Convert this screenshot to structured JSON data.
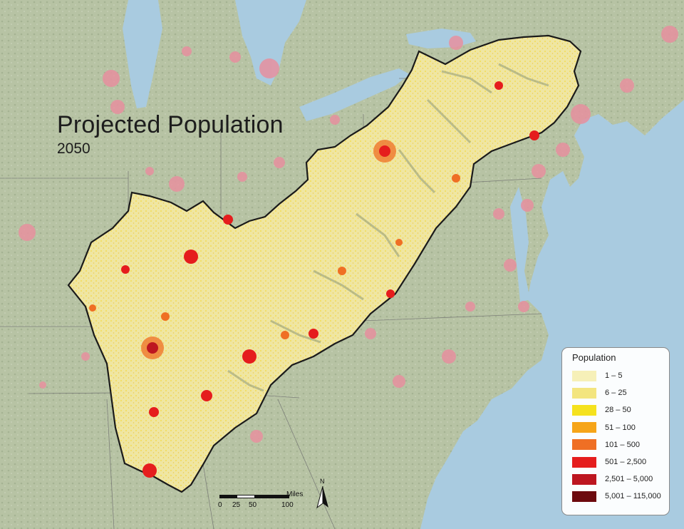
{
  "map": {
    "title": "Projected Population",
    "subtitle": "2050",
    "colors": {
      "ocean": "#a9cbe0",
      "land": "#b9c6a6",
      "region_fill": "#efe6a2",
      "urban_outside": "#e7909f",
      "region_outline": "#1a1a1a"
    }
  },
  "legend": {
    "title": "Population",
    "classes": [
      {
        "label": "1 – 5",
        "color": "#f6f0b8"
      },
      {
        "label": "6 – 25",
        "color": "#f3e57f"
      },
      {
        "label": "28 – 50",
        "color": "#f5e21e"
      },
      {
        "label": "51 – 100",
        "color": "#f6a519"
      },
      {
        "label": "101 – 500",
        "color": "#ef6f24"
      },
      {
        "label": "501 – 2,500",
        "color": "#e51d1d"
      },
      {
        "label": "2,501 – 5,000",
        "color": "#bd1620"
      },
      {
        "label": "5,001 – 115,000",
        "color": "#6d0a0e"
      }
    ]
  },
  "scale_bar": {
    "unit": "Miles",
    "ticks": [
      "0",
      "25",
      "50",
      "100"
    ]
  },
  "north_arrow": {
    "label": "N",
    "icon": "north-arrow-icon"
  }
}
